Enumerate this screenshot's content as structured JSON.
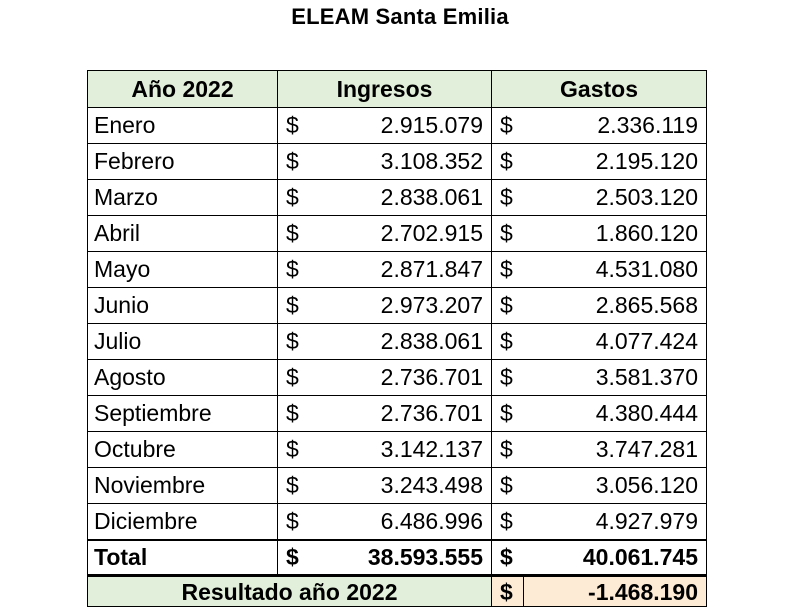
{
  "title": "ELEAM Santa Emilia",
  "header": {
    "year": "Año 2022",
    "income": "Ingresos",
    "expenses": "Gastos"
  },
  "currency_symbol": "$",
  "rows": [
    {
      "month": "Enero",
      "income": "2.915.079",
      "expenses": "2.336.119"
    },
    {
      "month": "Febrero",
      "income": "3.108.352",
      "expenses": "2.195.120"
    },
    {
      "month": "Marzo",
      "income": "2.838.061",
      "expenses": "2.503.120"
    },
    {
      "month": "Abril",
      "income": "2.702.915",
      "expenses": "1.860.120"
    },
    {
      "month": "Mayo",
      "income": "2.871.847",
      "expenses": "4.531.080"
    },
    {
      "month": "Junio",
      "income": "2.973.207",
      "expenses": "2.865.568"
    },
    {
      "month": "Julio",
      "income": "2.838.061",
      "expenses": "4.077.424"
    },
    {
      "month": "Agosto",
      "income": "2.736.701",
      "expenses": "3.581.370"
    },
    {
      "month": "Septiembre",
      "income": "2.736.701",
      "expenses": "4.380.444"
    },
    {
      "month": "Octubre",
      "income": "3.142.137",
      "expenses": "3.747.281"
    },
    {
      "month": "Noviembre",
      "income": "3.243.498",
      "expenses": "3.056.120"
    },
    {
      "month": "Diciembre",
      "income": "6.486.996",
      "expenses": "4.927.979"
    }
  ],
  "total": {
    "label": "Total",
    "income": "38.593.555",
    "expenses": "40.061.745"
  },
  "result_row": {
    "label": "Resultado año 2022",
    "currency": "$",
    "value": "-1.468.190"
  },
  "colors": {
    "header_bg": "#e2efda",
    "result_bg": "#fdebd6"
  }
}
